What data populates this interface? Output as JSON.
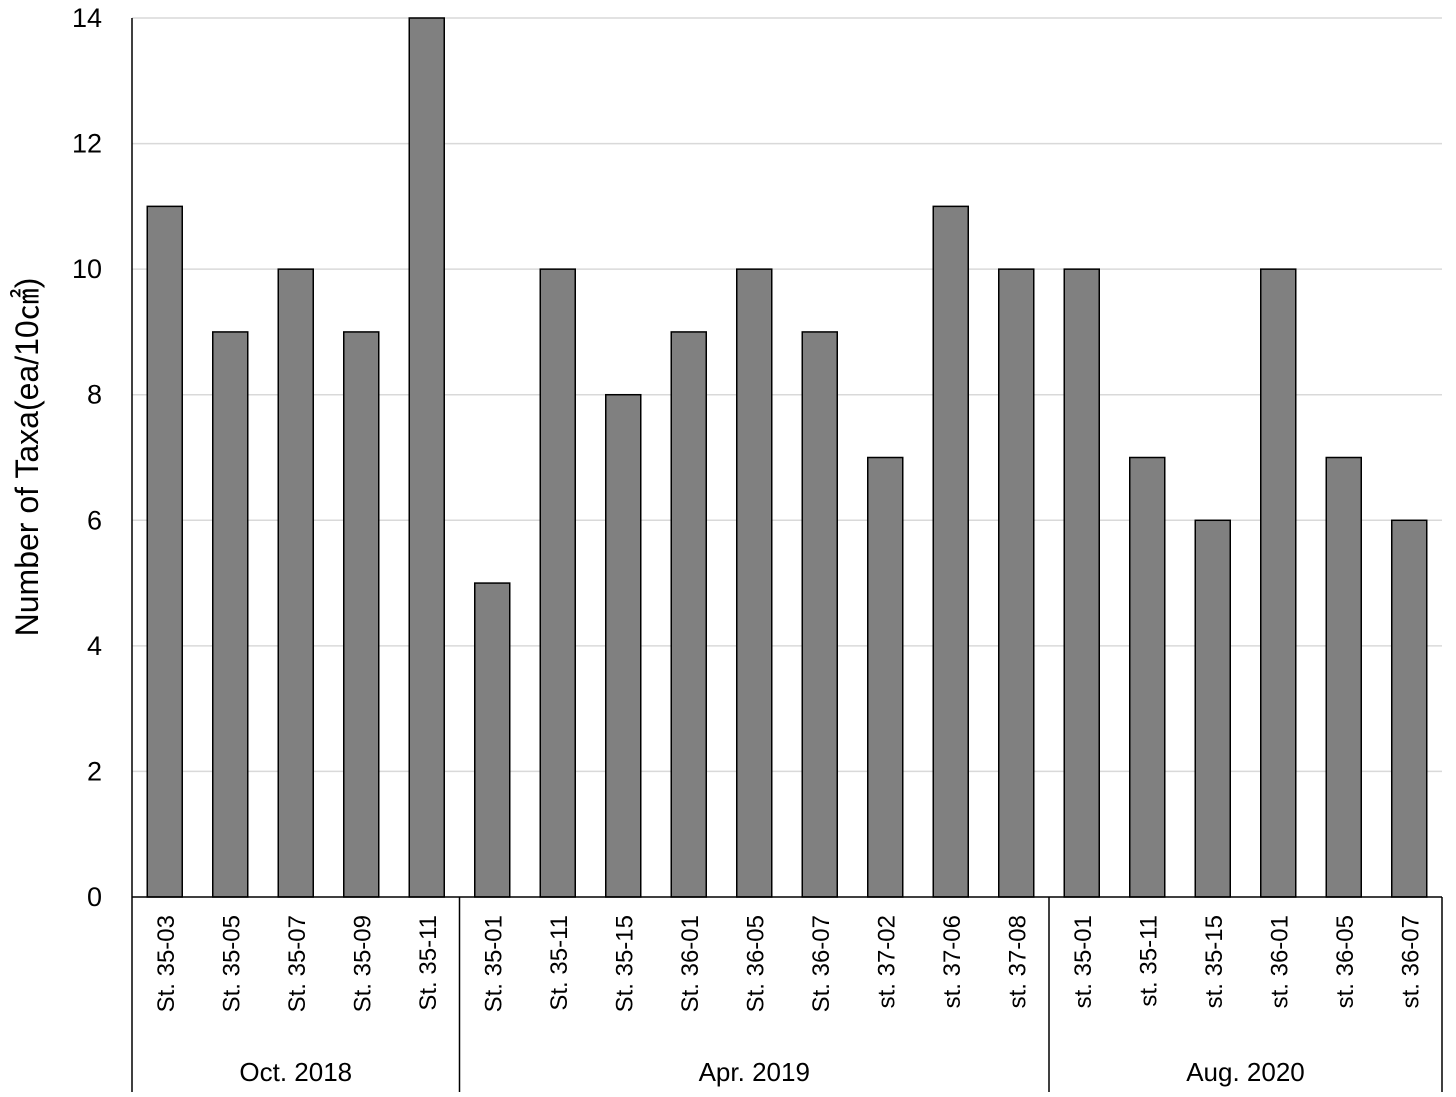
{
  "chart_data": {
    "type": "bar",
    "title": "",
    "xlabel": "",
    "ylabel": "Number of Taxa(ea/10㎠)",
    "ylim": [
      0,
      14
    ],
    "yticks": [
      0,
      2,
      4,
      6,
      8,
      10,
      12,
      14
    ],
    "grid": true,
    "legend": "none",
    "bar_color": "#808080",
    "categories": [
      "St. 35-03",
      "St. 35-05",
      "St. 35-07",
      "St. 35-09",
      "St. 35-11",
      "St. 35-01",
      "St. 35-11",
      "St. 35-15",
      "St. 36-01",
      "St. 36-05",
      "St. 36-07",
      "st. 37-02",
      "st. 37-06",
      "st. 37-08",
      "st. 35-01",
      "st. 35-11",
      "st. 35-15",
      "st. 36-01",
      "st. 36-05",
      "st. 36-07"
    ],
    "values": [
      11,
      9,
      10,
      9,
      14,
      5,
      10,
      8,
      9,
      10,
      9,
      7,
      11,
      10,
      10,
      7,
      6,
      10,
      7,
      6
    ],
    "groups": [
      {
        "label": "Oct. 2018",
        "count": 5
      },
      {
        "label": "Apr. 2019",
        "count": 9
      },
      {
        "label": "Aug. 2020",
        "count": 6
      }
    ]
  }
}
